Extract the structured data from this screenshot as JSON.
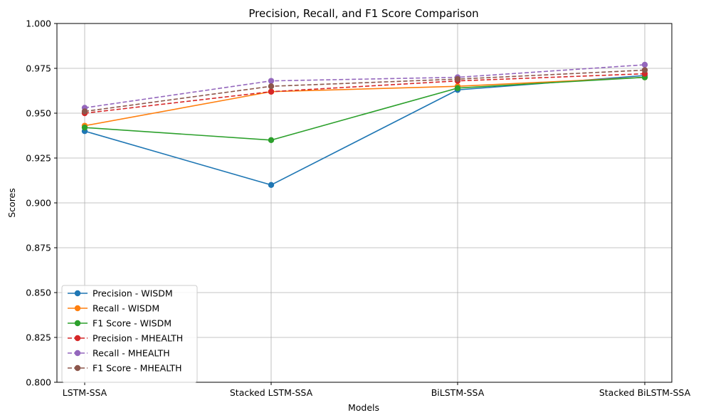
{
  "chart_data": {
    "type": "line",
    "title": "Precision, Recall, and F1 Score Comparison",
    "xlabel": "Models",
    "ylabel": "Scores",
    "categories": [
      "LSTM-SSA",
      "Stacked LSTM-SSA",
      "BiLSTM-SSA",
      "Stacked BiLSTM-SSA"
    ],
    "ylim": [
      0.8,
      1.0
    ],
    "yticks": [
      "0.800",
      "0.825",
      "0.850",
      "0.875",
      "0.900",
      "0.925",
      "0.950",
      "0.975",
      "1.000"
    ],
    "grid": true,
    "legend_position": "lower-left",
    "series": [
      {
        "name": "Precision - WISDM",
        "color": "#1f77b4",
        "dashed": false,
        "values": [
          0.94,
          0.91,
          0.963,
          0.971
        ]
      },
      {
        "name": "Recall - WISDM",
        "color": "#ff7f0e",
        "dashed": false,
        "values": [
          0.943,
          0.962,
          0.965,
          0.97
        ]
      },
      {
        "name": "F1 Score - WISDM",
        "color": "#2ca02c",
        "dashed": false,
        "values": [
          0.942,
          0.935,
          0.964,
          0.97
        ]
      },
      {
        "name": "Precision - MHEALTH",
        "color": "#d62728",
        "dashed": true,
        "values": [
          0.95,
          0.962,
          0.968,
          0.972
        ]
      },
      {
        "name": "Recall - MHEALTH",
        "color": "#9467bd",
        "dashed": true,
        "values": [
          0.953,
          0.968,
          0.97,
          0.977
        ]
      },
      {
        "name": "F1 Score - MHEALTH",
        "color": "#8c564b",
        "dashed": true,
        "values": [
          0.951,
          0.965,
          0.969,
          0.974
        ]
      }
    ]
  }
}
